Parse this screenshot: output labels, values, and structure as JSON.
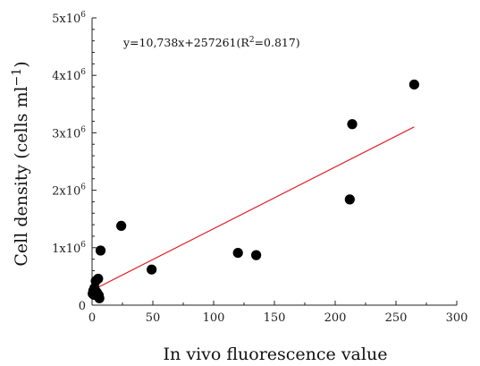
{
  "chart_data": {
    "type": "scatter",
    "xlabel": "In vivo fluorescence value",
    "ylabel_main": "Cell density (cells ml",
    "ylabel_sup": "−1",
    "ylabel_close": ")",
    "xlim": [
      0,
      300
    ],
    "ylim": [
      0,
      5000000
    ],
    "x_ticks": [
      {
        "value": 0,
        "label": "0"
      },
      {
        "value": 50,
        "label": "50"
      },
      {
        "value": 100,
        "label": "100"
      },
      {
        "value": 150,
        "label": "150"
      },
      {
        "value": 200,
        "label": "200"
      },
      {
        "value": 250,
        "label": "250"
      },
      {
        "value": 300,
        "label": "300"
      }
    ],
    "y_ticks": [
      {
        "value": 0,
        "label": "0",
        "exp": ""
      },
      {
        "value": 1000000,
        "label": "1x10",
        "exp": "6"
      },
      {
        "value": 2000000,
        "label": "2x10",
        "exp": "6"
      },
      {
        "value": 3000000,
        "label": "3x10",
        "exp": "6"
      },
      {
        "value": 4000000,
        "label": "4x10",
        "exp": "6"
      },
      {
        "value": 5000000,
        "label": "5x10",
        "exp": "6"
      }
    ],
    "points": [
      {
        "x": 0.5,
        "y": 200000
      },
      {
        "x": 1,
        "y": 250000
      },
      {
        "x": 1.5,
        "y": 180000
      },
      {
        "x": 2,
        "y": 300000
      },
      {
        "x": 3,
        "y": 420000
      },
      {
        "x": 4,
        "y": 220000
      },
      {
        "x": 5,
        "y": 460000
      },
      {
        "x": 5.5,
        "y": 170000
      },
      {
        "x": 6,
        "y": 120000
      },
      {
        "x": 7,
        "y": 950000
      },
      {
        "x": 24,
        "y": 1380000
      },
      {
        "x": 49,
        "y": 620000
      },
      {
        "x": 120,
        "y": 910000
      },
      {
        "x": 135,
        "y": 870000
      },
      {
        "x": 212,
        "y": 1840000
      },
      {
        "x": 214,
        "y": 3150000
      },
      {
        "x": 265,
        "y": 3840000
      }
    ],
    "fit": {
      "slope": 10738,
      "intercept": 257261,
      "x_range": [
        0,
        265
      ],
      "color": "#e0242b",
      "equation_main": "y=10,738x+257261(R",
      "equation_sup": "2",
      "equation_tail": "=0.817)"
    },
    "point_color": "#000000",
    "grid": false
  }
}
